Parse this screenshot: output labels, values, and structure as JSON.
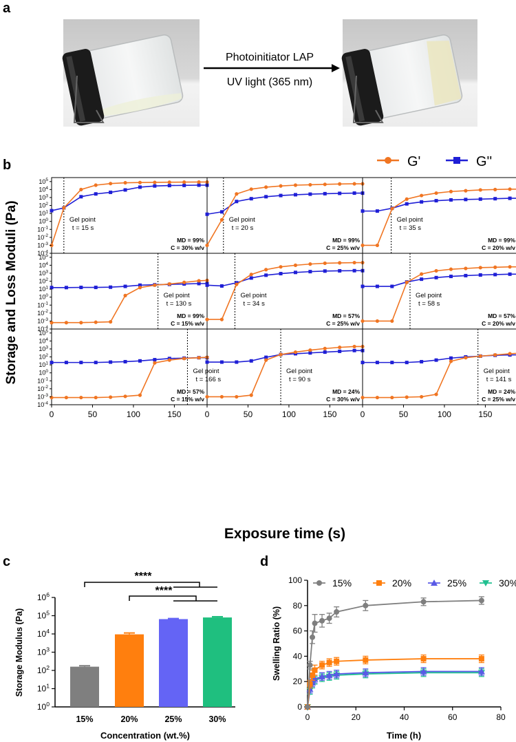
{
  "colors": {
    "orange": "#f07522",
    "blue": "#1f1fd6",
    "gray": "#7f7f7f",
    "bar20": "#ff7f0e",
    "bar25": "#6464f5",
    "bar30": "#1fbf7f",
    "green": "#20c090",
    "blue25": "#5a5ae6"
  },
  "panels": {
    "a": "a",
    "b": "b",
    "c": "c",
    "d": "d"
  },
  "panel_a": {
    "arrow_top_label": "Photoinitiator LAP",
    "arrow_bottom_label": "UV light (365 nm)"
  },
  "chart_data": [
    {
      "id": "rheology",
      "type": "line",
      "title": "",
      "xlabel": "Exposure time (s)",
      "ylabel": "Storage and Loss Moduli (Pa)",
      "xlim": [
        0,
        190
      ],
      "ylim_log": [
        -4,
        5.5
      ],
      "x_ticks": [
        0,
        50,
        100,
        150
      ],
      "y_ticks": [
        "10^5",
        "10^4",
        "10^3",
        "10^2",
        "10^1",
        "10^0",
        "10^-1",
        "10^-2",
        "10^-3",
        "10^-4"
      ],
      "legend": [
        "G'",
        "G''"
      ],
      "legend_position": "top-right",
      "gel_label": "Gel point",
      "subplots": [
        {
          "gel_time": "t = 15 s",
          "gel_x": 15,
          "md": "MD = 99%",
          "c": "C = 30% w/v",
          "x": [
            0,
            15,
            36,
            54,
            72,
            90,
            108,
            126,
            144,
            162,
            180,
            190
          ],
          "gp": [
            -3.0,
            1.7,
            4.0,
            4.55,
            4.75,
            4.85,
            4.88,
            4.9,
            4.92,
            4.93,
            4.94,
            4.94
          ],
          "gpp": [
            1.35,
            1.7,
            3.1,
            3.45,
            3.65,
            3.95,
            4.3,
            4.45,
            4.5,
            4.52,
            4.55,
            4.55
          ]
        },
        {
          "gel_time": "t = 20 s",
          "gel_x": 20,
          "md": "MD = 99%",
          "c": "C = 25% w/v",
          "x": [
            0,
            18,
            36,
            54,
            72,
            90,
            108,
            126,
            144,
            162,
            180,
            190
          ],
          "gp": [
            -3.0,
            0.2,
            3.45,
            4.05,
            4.3,
            4.45,
            4.55,
            4.6,
            4.65,
            4.7,
            4.72,
            4.72
          ],
          "gpp": [
            0.9,
            1.2,
            2.5,
            2.85,
            3.1,
            3.25,
            3.35,
            3.42,
            3.48,
            3.52,
            3.55,
            3.55
          ]
        },
        {
          "gel_time": "t = 35 s",
          "gel_x": 35,
          "md": "MD = 99%",
          "c": "C = 20% w/v",
          "x": [
            0,
            18,
            36,
            54,
            72,
            90,
            108,
            126,
            144,
            162,
            180,
            190
          ],
          "gp": [
            -3.0,
            -3.0,
            1.6,
            2.8,
            3.25,
            3.55,
            3.75,
            3.85,
            3.95,
            4.0,
            4.05,
            4.05
          ],
          "gpp": [
            1.3,
            1.3,
            1.65,
            2.2,
            2.45,
            2.6,
            2.7,
            2.75,
            2.8,
            2.85,
            2.9,
            2.9
          ]
        },
        {
          "gel_time": "t = 130 s",
          "gel_x": 130,
          "md": "MD = 99%",
          "c": "C = 15% w/v",
          "x": [
            0,
            18,
            36,
            54,
            72,
            90,
            108,
            126,
            144,
            162,
            180,
            190
          ],
          "gp": [
            -3.2,
            -3.2,
            -3.2,
            -3.15,
            -3.1,
            0.2,
            1.2,
            1.5,
            1.65,
            1.85,
            2.05,
            2.1
          ],
          "gpp": [
            1.2,
            1.2,
            1.22,
            1.22,
            1.25,
            1.35,
            1.5,
            1.55,
            1.6,
            1.65,
            1.7,
            1.7
          ]
        },
        {
          "gel_time": "t = 34 s",
          "gel_x": 34,
          "md": "MD = 57%",
          "c": "C = 25% w/v",
          "x": [
            0,
            18,
            36,
            54,
            72,
            90,
            108,
            126,
            144,
            162,
            180,
            190
          ],
          "gp": [
            -2.8,
            -2.8,
            1.6,
            2.85,
            3.45,
            3.8,
            4.0,
            4.15,
            4.25,
            4.3,
            4.33,
            4.33
          ],
          "gpp": [
            1.5,
            1.4,
            1.8,
            2.4,
            2.75,
            2.95,
            3.1,
            3.2,
            3.27,
            3.3,
            3.32,
            3.32
          ]
        },
        {
          "gel_time": "t = 58 s",
          "gel_x": 58,
          "md": "MD = 57%",
          "c": "C = 20% w/v",
          "x": [
            0,
            18,
            36,
            54,
            72,
            90,
            108,
            126,
            144,
            162,
            180,
            190
          ],
          "gp": [
            -3.0,
            -3.0,
            -3.0,
            1.85,
            2.9,
            3.3,
            3.5,
            3.6,
            3.7,
            3.75,
            3.8,
            3.8
          ],
          "gpp": [
            1.35,
            1.35,
            1.35,
            1.9,
            2.25,
            2.45,
            2.6,
            2.7,
            2.78,
            2.83,
            2.88,
            2.88
          ]
        },
        {
          "gel_time": "t = 166 s",
          "gel_x": 166,
          "md": "MD = 57%",
          "c": "C = 15% w/v",
          "x": [
            0,
            18,
            36,
            54,
            72,
            90,
            108,
            126,
            144,
            162,
            180,
            190
          ],
          "gp": [
            -3.1,
            -3.1,
            -3.1,
            -3.1,
            -3.05,
            -2.95,
            -2.8,
            1.25,
            1.6,
            1.8,
            1.9,
            1.95
          ],
          "gpp": [
            1.3,
            1.3,
            1.3,
            1.3,
            1.35,
            1.4,
            1.5,
            1.65,
            1.8,
            1.85,
            1.9,
            1.9
          ]
        },
        {
          "gel_time": "t = 90 s",
          "gel_x": 90,
          "md": "MD = 24%",
          "c": "C = 30% w/v",
          "x": [
            0,
            18,
            36,
            54,
            72,
            90,
            108,
            126,
            144,
            162,
            180,
            190
          ],
          "gp": [
            -3.0,
            -3.0,
            -3.0,
            -2.8,
            1.6,
            2.3,
            2.6,
            2.85,
            3.05,
            3.2,
            3.3,
            3.3
          ],
          "gpp": [
            1.35,
            1.35,
            1.35,
            1.5,
            1.95,
            2.3,
            2.4,
            2.5,
            2.6,
            2.7,
            2.8,
            2.8
          ]
        },
        {
          "gel_time": "t = 141 s",
          "gel_x": 141,
          "md": "MD = 24%",
          "c": "C = 25% w/v",
          "x": [
            0,
            18,
            36,
            54,
            72,
            90,
            108,
            126,
            144,
            162,
            180,
            190
          ],
          "gp": [
            -3.1,
            -3.1,
            -3.1,
            -3.05,
            -3.0,
            -2.7,
            1.45,
            1.9,
            2.1,
            2.25,
            2.4,
            2.45
          ],
          "gpp": [
            1.3,
            1.3,
            1.3,
            1.3,
            1.4,
            1.6,
            1.85,
            2.0,
            2.1,
            2.2,
            2.25,
            2.25
          ]
        }
      ]
    },
    {
      "id": "storage_modulus",
      "type": "bar",
      "title": "",
      "xlabel": "Concentration (wt.%)",
      "ylabel": "Storage Modulus (Pa)",
      "categories": [
        "15%",
        "20%",
        "25%",
        "30%"
      ],
      "values": [
        160,
        9500,
        65000,
        80000
      ],
      "errors": [
        20,
        1800,
        5000,
        8000
      ],
      "scale": "log",
      "ylim_log": [
        0,
        6
      ],
      "y_ticks": [
        "10^0",
        "10^1",
        "10^2",
        "10^3",
        "10^4",
        "10^5",
        "10^6"
      ],
      "significance": [
        "****",
        "****"
      ]
    },
    {
      "id": "swelling",
      "type": "line",
      "title": "",
      "xlabel": "Time (h)",
      "ylabel": "Swelling Ratio (%)",
      "xlim": [
        0,
        80
      ],
      "ylim": [
        0,
        100
      ],
      "x_ticks": [
        0,
        20,
        40,
        60,
        80
      ],
      "y_ticks": [
        0,
        20,
        40,
        60,
        80,
        100
      ],
      "legend_position": "top",
      "x": [
        0,
        1,
        2,
        3,
        6,
        9,
        12,
        24,
        48,
        72
      ],
      "series": [
        {
          "name": "15%",
          "values": [
            0,
            33,
            55,
            66,
            68,
            70,
            75,
            80,
            83,
            84
          ],
          "err": [
            0,
            3,
            5,
            7,
            5,
            4,
            4,
            4,
            3,
            3
          ]
        },
        {
          "name": "20%",
          "values": [
            0,
            18,
            25,
            29,
            33,
            35,
            36,
            37,
            38,
            38
          ],
          "err": [
            0,
            3,
            4,
            4,
            3,
            3,
            3,
            3,
            3,
            3
          ]
        },
        {
          "name": "25%",
          "values": [
            0,
            14,
            19,
            22,
            24,
            25,
            26,
            27,
            28,
            28
          ],
          "err": [
            0,
            3,
            3,
            3,
            3,
            3,
            3,
            3,
            3,
            3
          ]
        },
        {
          "name": "30%",
          "values": [
            0,
            13,
            18,
            21,
            23,
            24,
            25,
            26,
            27,
            27
          ],
          "err": [
            0,
            3,
            3,
            3,
            3,
            3,
            3,
            3,
            3,
            3
          ]
        }
      ]
    }
  ]
}
